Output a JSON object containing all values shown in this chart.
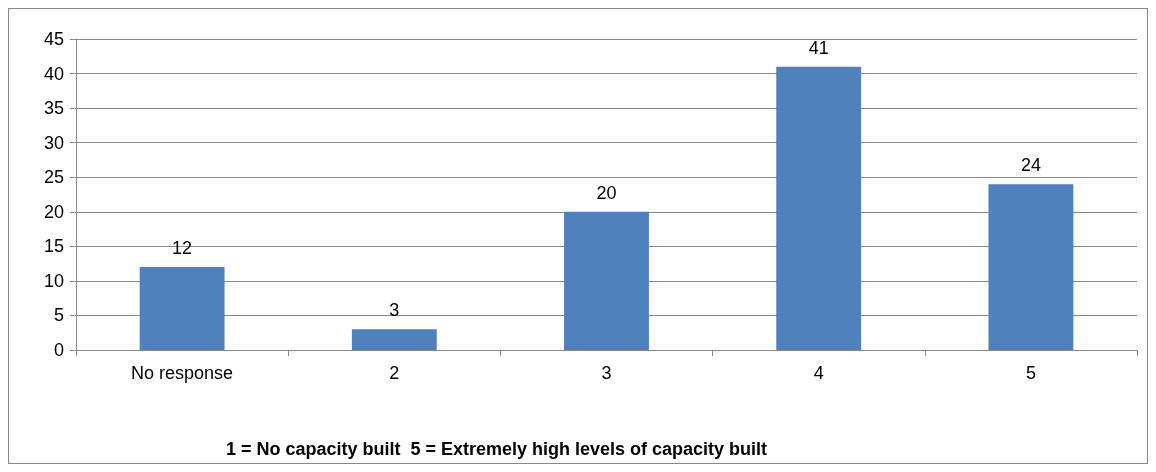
{
  "chart_data": {
    "type": "bar",
    "xlabel": "1 = No capacity built  5 = Extremely high levels of capacity built",
    "categories": [
      "No response",
      "2",
      "3",
      "4",
      "5"
    ],
    "values": [
      12,
      3,
      20,
      41,
      24
    ],
    "color": "#4f81bd",
    "ylim": [
      0,
      45
    ],
    "yticks": [
      0,
      5,
      10,
      15,
      20,
      25,
      30,
      35,
      40,
      45
    ],
    "grid": "y",
    "data_labels": true
  }
}
